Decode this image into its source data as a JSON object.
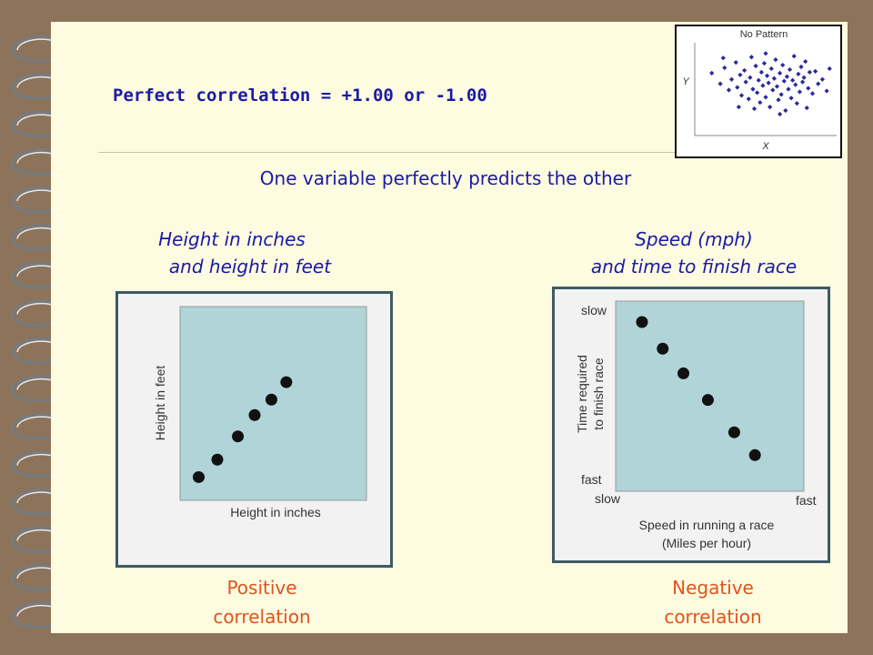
{
  "title": "Perfect correlation = +1.00 or -1.00",
  "subtitle": "One variable perfectly predicts the other",
  "colors": {
    "title": "#1a1aa6",
    "caption": "#e0541c",
    "plot_fill": "#b0d4d8",
    "point": "#111111"
  },
  "chart_data": [
    {
      "type": "scatter",
      "panel_title": [
        "Height in inches",
        "and height in feet"
      ],
      "caption": [
        "Positive",
        "correlation"
      ],
      "xlabel": "Height in inches",
      "ylabel": "Height in feet",
      "xlim": [
        0,
        10
      ],
      "ylim": [
        0,
        10
      ],
      "points": [
        {
          "x": 1.0,
          "y": 1.2
        },
        {
          "x": 2.0,
          "y": 2.1
        },
        {
          "x": 3.1,
          "y": 3.3
        },
        {
          "x": 4.0,
          "y": 4.4
        },
        {
          "x": 4.9,
          "y": 5.2
        },
        {
          "x": 5.7,
          "y": 6.1
        }
      ]
    },
    {
      "type": "scatter",
      "panel_title": [
        "Speed (mph)",
        "and time to finish race"
      ],
      "caption": [
        "Negative",
        "correlation"
      ],
      "xlabel": [
        "Speed in running a race",
        "(Miles per hour)"
      ],
      "ylabel": [
        "Time required",
        "to finish race"
      ],
      "x_end_labels": [
        "slow",
        "fast"
      ],
      "y_end_labels": [
        "slow",
        "fast"
      ],
      "xlim": [
        0,
        10
      ],
      "ylim": [
        0,
        10
      ],
      "points": [
        {
          "x": 1.4,
          "y": 8.9
        },
        {
          "x": 2.5,
          "y": 7.5
        },
        {
          "x": 3.6,
          "y": 6.2
        },
        {
          "x": 4.9,
          "y": 4.8
        },
        {
          "x": 6.3,
          "y": 3.1
        },
        {
          "x": 7.4,
          "y": 1.9
        }
      ]
    },
    {
      "type": "scatter",
      "title": "No Pattern",
      "xlabel": "X",
      "ylabel": "Y",
      "xlim": [
        0,
        10
      ],
      "ylim": [
        0,
        10
      ],
      "points": [
        {
          "x": 1.2,
          "y": 6.8
        },
        {
          "x": 1.8,
          "y": 5.6
        },
        {
          "x": 2.1,
          "y": 7.4
        },
        {
          "x": 2.4,
          "y": 4.9
        },
        {
          "x": 2.6,
          "y": 6.1
        },
        {
          "x": 2.9,
          "y": 8.0
        },
        {
          "x": 3.0,
          "y": 5.2
        },
        {
          "x": 3.2,
          "y": 6.6
        },
        {
          "x": 3.3,
          "y": 4.3
        },
        {
          "x": 3.5,
          "y": 7.1
        },
        {
          "x": 3.6,
          "y": 5.8
        },
        {
          "x": 3.8,
          "y": 3.9
        },
        {
          "x": 3.9,
          "y": 6.3
        },
        {
          "x": 4.0,
          "y": 8.6
        },
        {
          "x": 4.1,
          "y": 5.0
        },
        {
          "x": 4.3,
          "y": 7.6
        },
        {
          "x": 4.4,
          "y": 4.6
        },
        {
          "x": 4.5,
          "y": 6.0
        },
        {
          "x": 4.6,
          "y": 3.5
        },
        {
          "x": 4.7,
          "y": 6.9
        },
        {
          "x": 4.8,
          "y": 5.4
        },
        {
          "x": 4.9,
          "y": 7.9
        },
        {
          "x": 5.0,
          "y": 4.1
        },
        {
          "x": 5.1,
          "y": 6.5
        },
        {
          "x": 5.2,
          "y": 5.7
        },
        {
          "x": 5.3,
          "y": 3.0
        },
        {
          "x": 5.4,
          "y": 7.3
        },
        {
          "x": 5.5,
          "y": 4.9
        },
        {
          "x": 5.6,
          "y": 6.2
        },
        {
          "x": 5.7,
          "y": 8.3
        },
        {
          "x": 5.8,
          "y": 5.3
        },
        {
          "x": 5.9,
          "y": 3.8
        },
        {
          "x": 6.0,
          "y": 6.8
        },
        {
          "x": 6.1,
          "y": 4.4
        },
        {
          "x": 6.2,
          "y": 7.7
        },
        {
          "x": 6.3,
          "y": 5.9
        },
        {
          "x": 6.4,
          "y": 2.6
        },
        {
          "x": 6.5,
          "y": 6.4
        },
        {
          "x": 6.6,
          "y": 5.0
        },
        {
          "x": 6.7,
          "y": 7.2
        },
        {
          "x": 6.8,
          "y": 4.0
        },
        {
          "x": 6.9,
          "y": 6.0
        },
        {
          "x": 7.0,
          "y": 8.7
        },
        {
          "x": 7.1,
          "y": 5.5
        },
        {
          "x": 7.2,
          "y": 3.4
        },
        {
          "x": 7.3,
          "y": 6.7
        },
        {
          "x": 7.4,
          "y": 4.7
        },
        {
          "x": 7.5,
          "y": 7.5
        },
        {
          "x": 7.6,
          "y": 5.8
        },
        {
          "x": 7.7,
          "y": 6.3
        },
        {
          "x": 7.8,
          "y": 8.1
        },
        {
          "x": 8.0,
          "y": 5.1
        },
        {
          "x": 8.1,
          "y": 6.9
        },
        {
          "x": 8.3,
          "y": 4.5
        },
        {
          "x": 8.5,
          "y": 7.0
        },
        {
          "x": 8.7,
          "y": 5.6
        },
        {
          "x": 9.0,
          "y": 6.1
        },
        {
          "x": 9.3,
          "y": 4.8
        },
        {
          "x": 2.0,
          "y": 8.5
        },
        {
          "x": 9.5,
          "y": 7.3
        },
        {
          "x": 5.0,
          "y": 9.0
        },
        {
          "x": 6.0,
          "y": 2.2
        },
        {
          "x": 4.2,
          "y": 2.8
        },
        {
          "x": 7.9,
          "y": 2.9
        },
        {
          "x": 3.1,
          "y": 3.0
        }
      ]
    }
  ]
}
